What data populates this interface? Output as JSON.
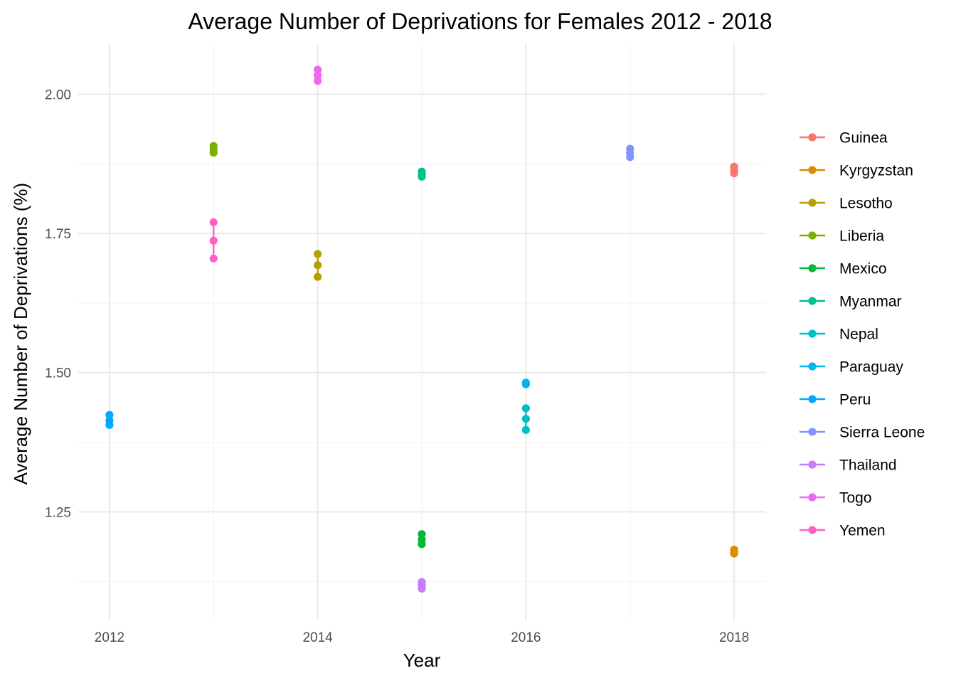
{
  "chart_data": {
    "type": "line",
    "title": "Average Number of Deprivations for Females 2012 - 2018",
    "xlabel": "Year",
    "ylabel": "Average Number of Deprivations (%)",
    "xlim": [
      2011.7,
      2018.3
    ],
    "ylim": [
      1.055,
      2.09
    ],
    "x_ticks": [
      2012,
      2014,
      2016,
      2018
    ],
    "x_tick_labels": [
      "2012",
      "2014",
      "2016",
      "2018"
    ],
    "y_ticks": [
      1.25,
      1.5,
      1.75,
      2.0
    ],
    "y_tick_labels": [
      "1.25",
      "1.50",
      "1.75",
      "2.00"
    ],
    "grid": true,
    "legend_position": "right",
    "series": [
      {
        "name": "Guinea",
        "color": "#F8766D",
        "x": [
          2018,
          2018,
          2018
        ],
        "y": [
          1.858,
          1.864,
          1.87
        ]
      },
      {
        "name": "Kyrgyzstan",
        "color": "#DE8C00",
        "x": [
          2018,
          2018,
          2018
        ],
        "y": [
          1.175,
          1.178,
          1.182
        ]
      },
      {
        "name": "Lesotho",
        "color": "#B79F00",
        "x": [
          2014,
          2014,
          2014
        ],
        "y": [
          1.672,
          1.693,
          1.713
        ]
      },
      {
        "name": "Liberia",
        "color": "#7CAE00",
        "x": [
          2013,
          2013,
          2013
        ],
        "y": [
          1.895,
          1.901,
          1.907
        ]
      },
      {
        "name": "Mexico",
        "color": "#00BA38",
        "x": [
          2015,
          2015,
          2015
        ],
        "y": [
          1.192,
          1.2,
          1.21
        ]
      },
      {
        "name": "Myanmar",
        "color": "#00C08B",
        "x": [
          2015,
          2015,
          2015
        ],
        "y": [
          1.852,
          1.856,
          1.861
        ]
      },
      {
        "name": "Nepal",
        "color": "#00BFC4",
        "x": [
          2016,
          2016,
          2016
        ],
        "y": [
          1.397,
          1.417,
          1.436
        ]
      },
      {
        "name": "Paraguay",
        "color": "#00B4F0",
        "x": [
          2016,
          2016
        ],
        "y": [
          1.479,
          1.482
        ]
      },
      {
        "name": "Peru",
        "color": "#00A9FF",
        "x": [
          2012,
          2012,
          2012
        ],
        "y": [
          1.406,
          1.414,
          1.424
        ]
      },
      {
        "name": "Sierra Leone",
        "color": "#8494FF",
        "x": [
          2017,
          2017,
          2017
        ],
        "y": [
          1.887,
          1.894,
          1.902
        ]
      },
      {
        "name": "Thailand",
        "color": "#C77CFF",
        "x": [
          2015,
          2015,
          2015
        ],
        "y": [
          1.112,
          1.118,
          1.124
        ]
      },
      {
        "name": "Togo",
        "color": "#ED68ED",
        "x": [
          2014,
          2014,
          2014
        ],
        "y": [
          2.024,
          2.034,
          2.044
        ]
      },
      {
        "name": "Yemen",
        "color": "#FF61C3",
        "x": [
          2013,
          2013,
          2013
        ],
        "y": [
          1.705,
          1.737,
          1.77
        ]
      }
    ]
  }
}
